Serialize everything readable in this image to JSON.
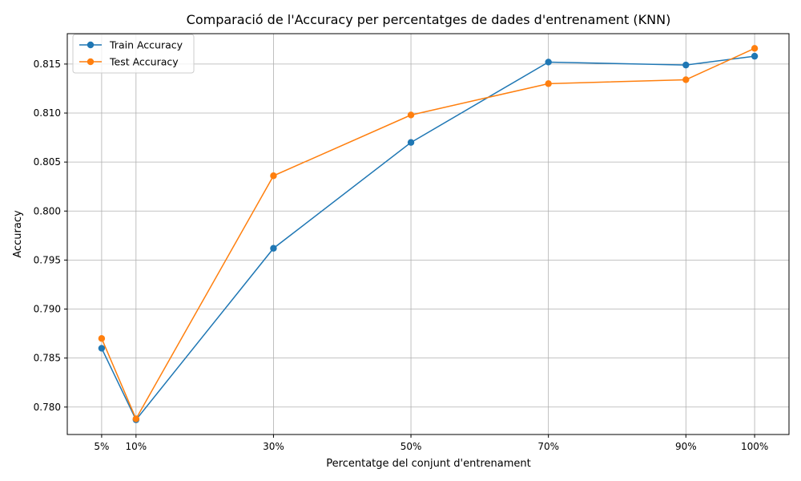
{
  "chart_data": {
    "type": "line",
    "title": "Comparació de l'Accuracy per percentatges de dades d'entrenament (KNN)",
    "xlabel": "Percentatge del conjunt d'entrenament",
    "ylabel": "Accuracy",
    "x": [
      5,
      10,
      30,
      50,
      70,
      90,
      100
    ],
    "x_tick_labels": [
      "5%",
      "10%",
      "30%",
      "50%",
      "70%",
      "90%",
      "100%"
    ],
    "xlim": [
      0,
      105
    ],
    "ylim": [
      0.7772,
      0.8181
    ],
    "y_ticks": [
      0.78,
      0.785,
      0.79,
      0.795,
      0.8,
      0.805,
      0.81,
      0.815
    ],
    "y_tick_labels": [
      "0.780",
      "0.785",
      "0.790",
      "0.795",
      "0.800",
      "0.805",
      "0.810",
      "0.815"
    ],
    "grid": true,
    "legend_position": "top-left",
    "series": [
      {
        "name": "Train Accuracy",
        "color": "#1f77b4",
        "marker": "circle",
        "values": [
          0.786,
          0.7787,
          0.7962,
          0.807,
          0.8152,
          0.8149,
          0.8158
        ]
      },
      {
        "name": "Test Accuracy",
        "color": "#ff7f0e",
        "marker": "circle",
        "values": [
          0.787,
          0.7788,
          0.8036,
          0.8098,
          0.813,
          0.8134,
          0.8166
        ]
      }
    ]
  }
}
